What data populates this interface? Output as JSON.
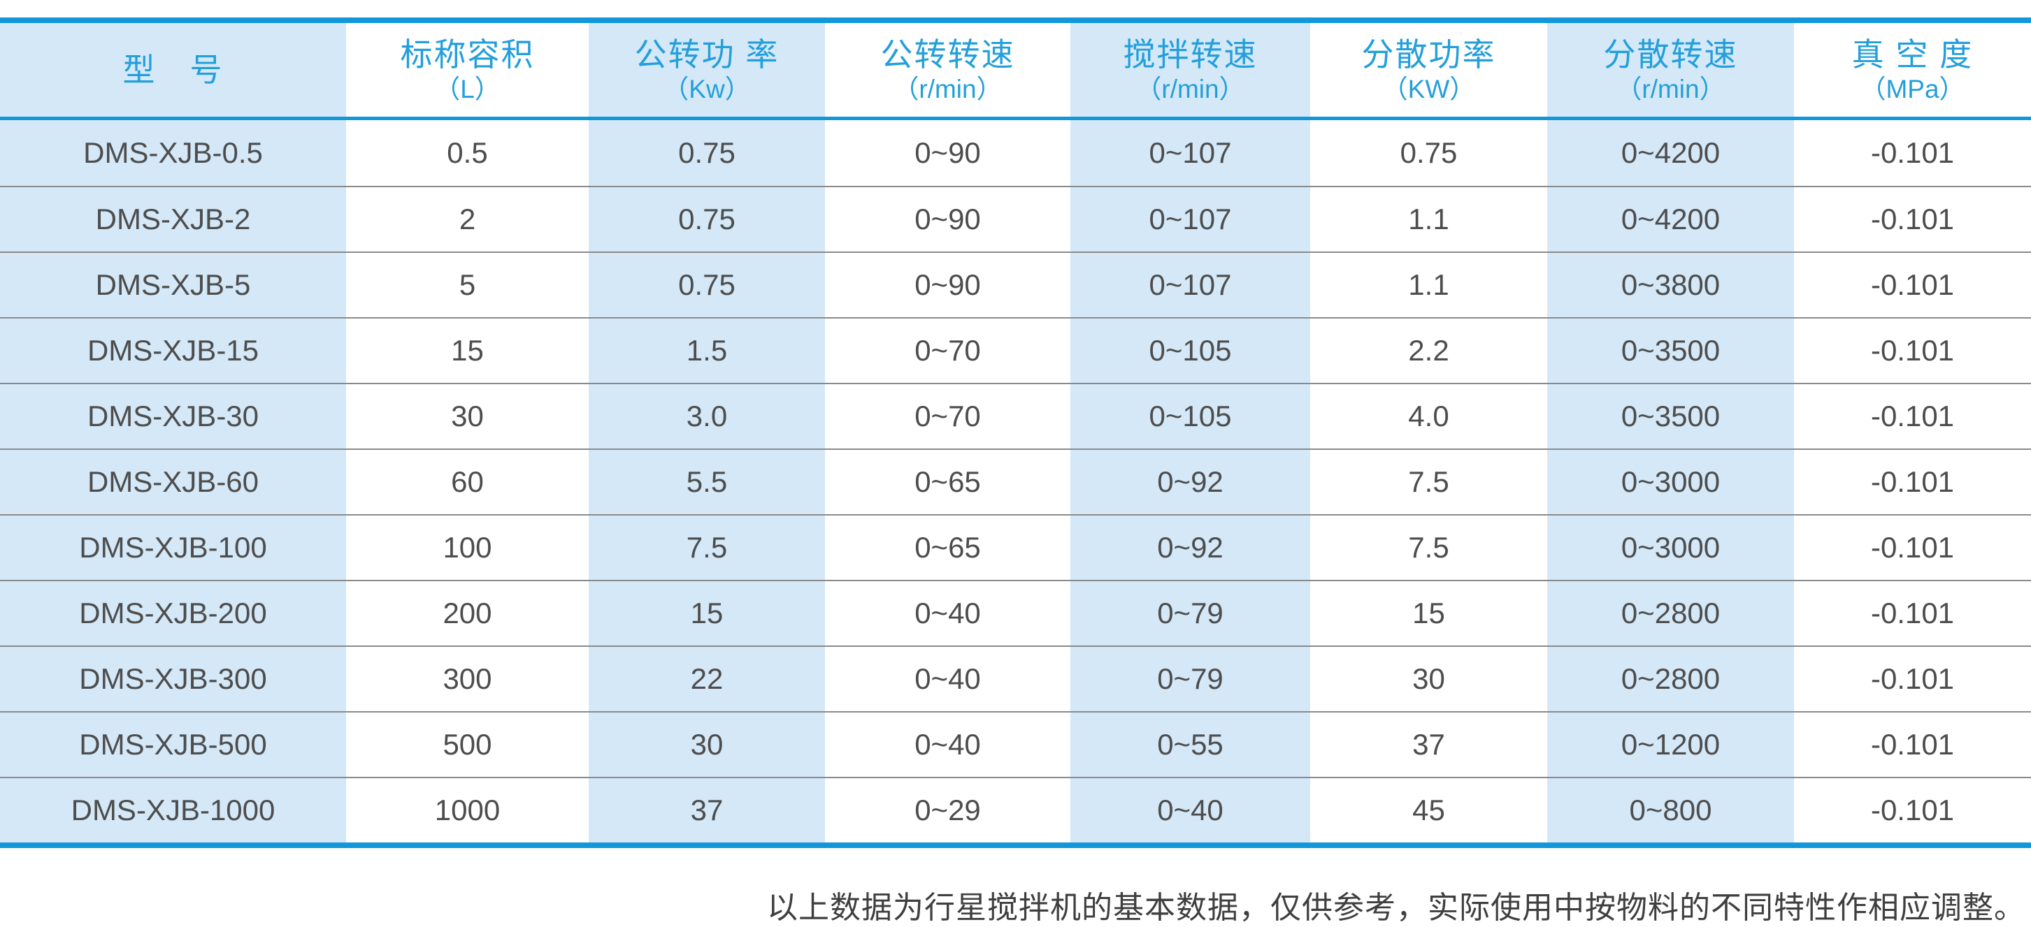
{
  "colors": {
    "accent_blue": "#1297d8",
    "header_text_blue": "#239fdb",
    "band_light_blue": "#d4e8f7",
    "body_text": "#4d4d4d",
    "row_divider": "#8a8a8a",
    "footnote_text": "#3f3f3f"
  },
  "table": {
    "banded_column_indexes": [
      0,
      2,
      4,
      6
    ],
    "columns": [
      {
        "title": "型　号",
        "unit": ""
      },
      {
        "title": "标称容积",
        "unit": "（L）"
      },
      {
        "title": "公转功 率",
        "unit": "（Kw）"
      },
      {
        "title": "公转转速",
        "unit": "（r/min）"
      },
      {
        "title": "搅拌转速",
        "unit": "（r/min）"
      },
      {
        "title": "分散功率",
        "unit": "（KW）"
      },
      {
        "title": "分散转速",
        "unit": "（r/min）"
      },
      {
        "title": "真 空 度",
        "unit": "（MPa）"
      }
    ],
    "rows": [
      [
        "DMS-XJB-0.5",
        "0.5",
        "0.75",
        "0~90",
        "0~107",
        "0.75",
        "0~4200",
        "-0.101"
      ],
      [
        "DMS-XJB-2",
        "2",
        "0.75",
        "0~90",
        "0~107",
        "1.1",
        "0~4200",
        "-0.101"
      ],
      [
        "DMS-XJB-5",
        "5",
        "0.75",
        "0~90",
        "0~107",
        "1.1",
        "0~3800",
        "-0.101"
      ],
      [
        "DMS-XJB-15",
        "15",
        "1.5",
        "0~70",
        "0~105",
        "2.2",
        "0~3500",
        "-0.101"
      ],
      [
        "DMS-XJB-30",
        "30",
        "3.0",
        "0~70",
        "0~105",
        "4.0",
        "0~3500",
        "-0.101"
      ],
      [
        "DMS-XJB-60",
        "60",
        "5.5",
        "0~65",
        "0~92",
        "7.5",
        "0~3000",
        "-0.101"
      ],
      [
        "DMS-XJB-100",
        "100",
        "7.5",
        "0~65",
        "0~92",
        "7.5",
        "0~3000",
        "-0.101"
      ],
      [
        "DMS-XJB-200",
        "200",
        "15",
        "0~40",
        "0~79",
        "15",
        "0~2800",
        "-0.101"
      ],
      [
        "DMS-XJB-300",
        "300",
        "22",
        "0~40",
        "0~79",
        "30",
        "0~2800",
        "-0.101"
      ],
      [
        "DMS-XJB-500",
        "500",
        "30",
        "0~40",
        "0~55",
        "37",
        "0~1200",
        "-0.101"
      ],
      [
        "DMS-XJB-1000",
        "1000",
        "37",
        "0~29",
        "0~40",
        "45",
        "0~800",
        "-0.101"
      ]
    ]
  },
  "footnote": "以上数据为行星搅拌机的基本数据，仅供参考，实际使用中按物料的不同特性作相应调整。"
}
